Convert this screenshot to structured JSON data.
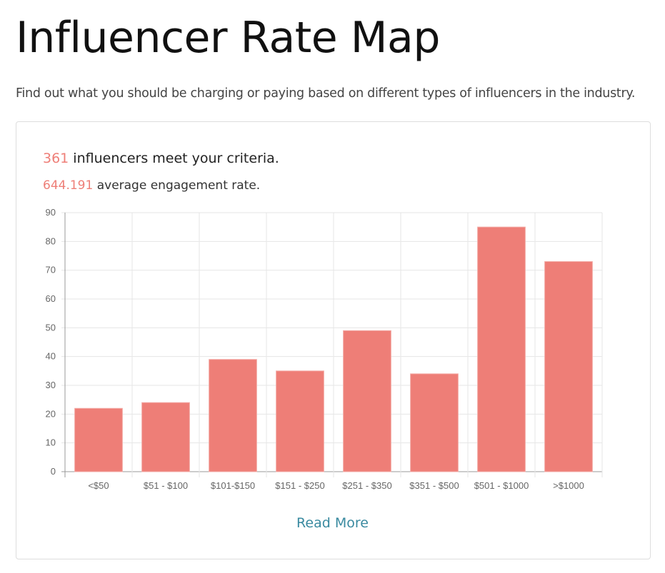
{
  "page": {
    "title": "Influencer Rate Map",
    "subtitle": "Find out what you should be charging or paying based on different types of influencers in the industry."
  },
  "stats": {
    "count": "361",
    "count_text": " influencers meet your criteria.",
    "engagement": "644.191",
    "engagement_text": " average engagement rate."
  },
  "read_more": "Read More",
  "colors": {
    "bar": "#ee7e77",
    "highlight": "#ee7e77",
    "link": "#3a8aa0"
  },
  "chart_data": {
    "type": "bar",
    "title": "",
    "xlabel": "",
    "ylabel": "",
    "categories": [
      "<$50",
      "$51 - $100",
      "$101-$150",
      "$151 - $250",
      "$251 - $350",
      "$351 - $500",
      "$501 - $1000",
      ">$1000"
    ],
    "values": [
      22,
      24,
      39,
      35,
      49,
      34,
      85,
      73
    ],
    "ylim": [
      0,
      90
    ],
    "yticks": [
      0,
      10,
      20,
      30,
      40,
      50,
      60,
      70,
      80,
      90
    ],
    "grid": true,
    "legend": "none"
  }
}
